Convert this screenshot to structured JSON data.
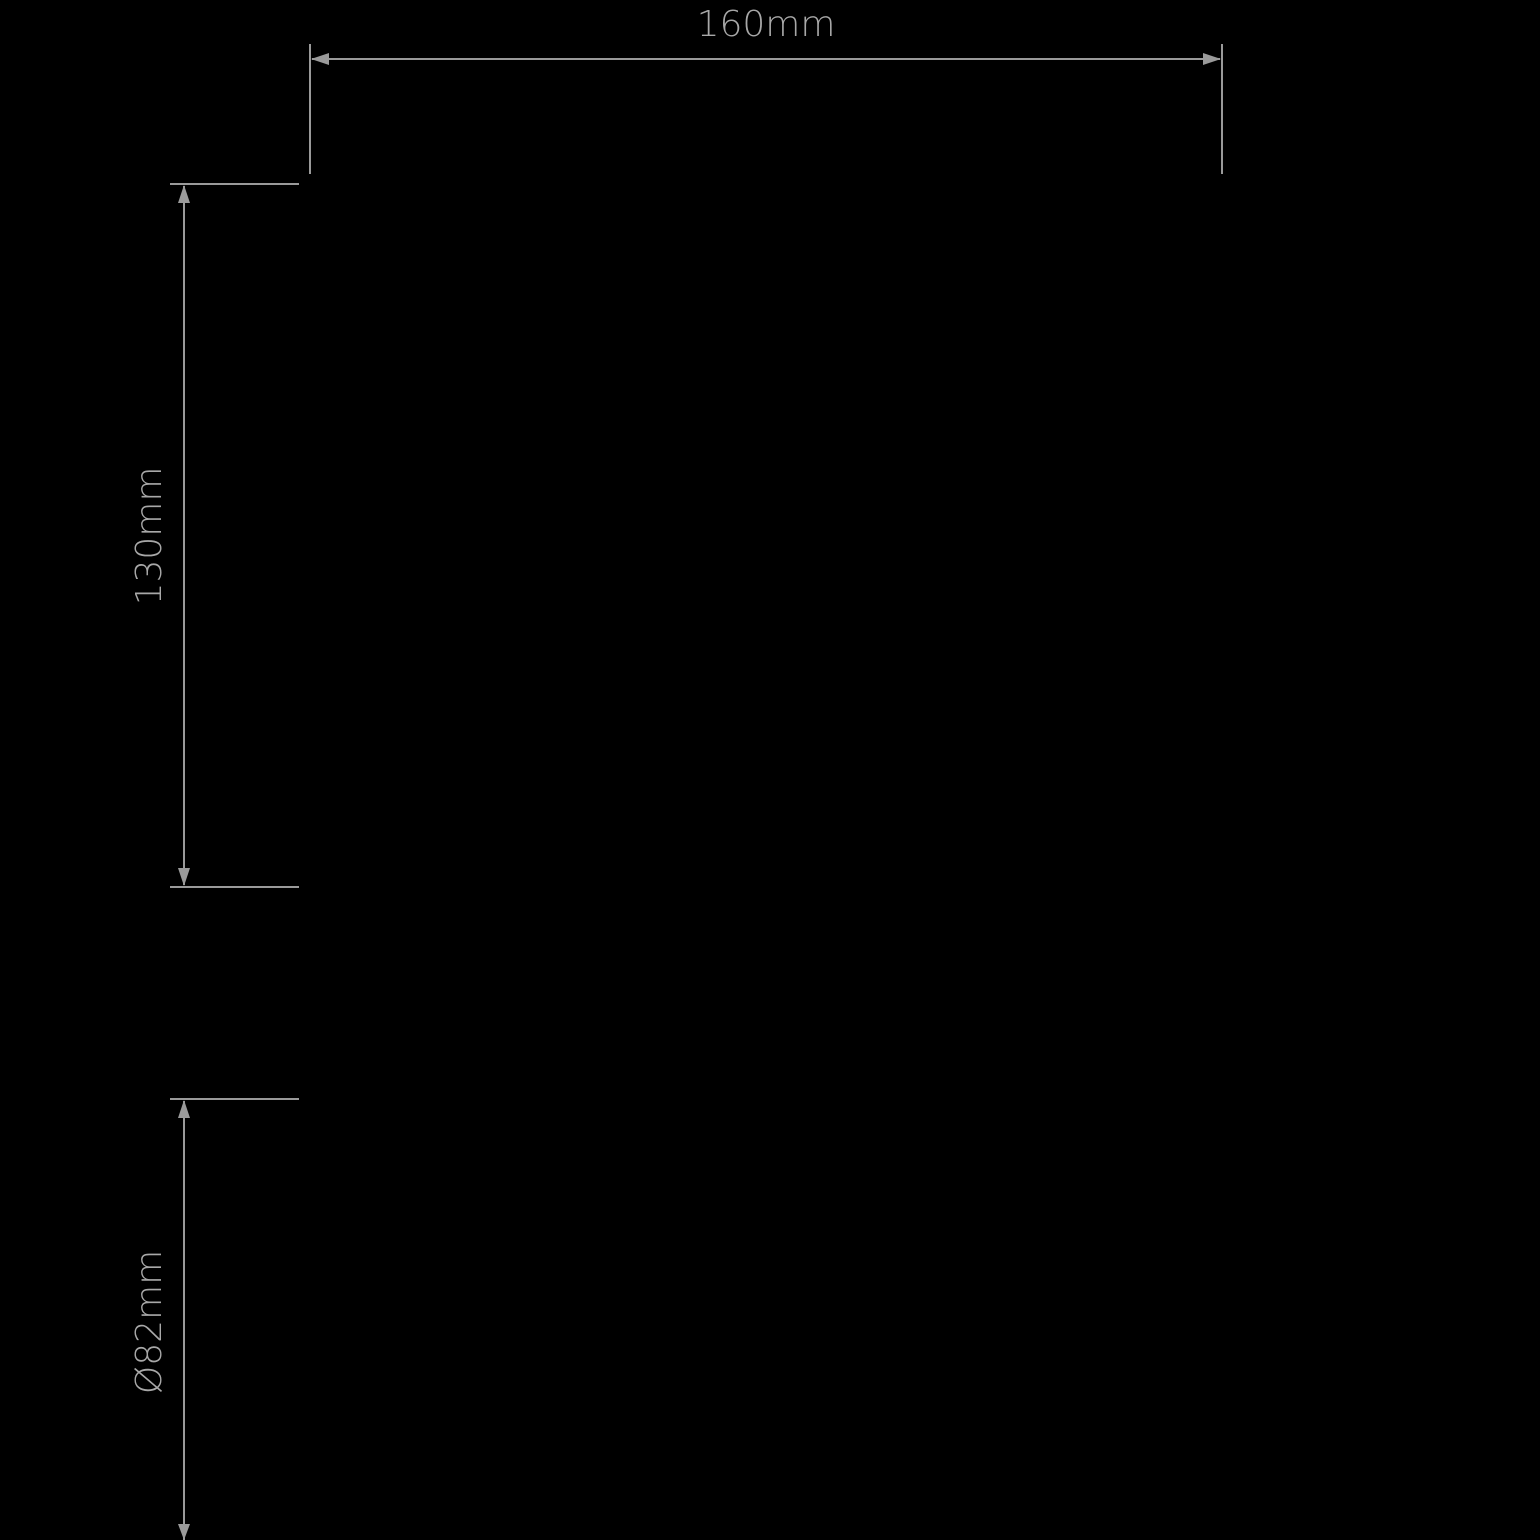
{
  "dimensions": {
    "width": "160mm",
    "height": "130mm",
    "diameter": "Ø82mm"
  },
  "colors": {
    "background": "#000000",
    "line": "#9a9a9a"
  }
}
